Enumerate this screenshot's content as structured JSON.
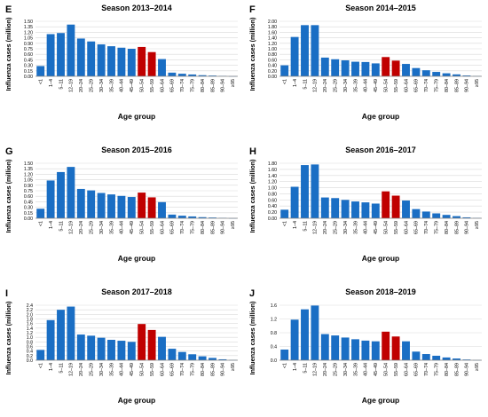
{
  "figure": {
    "layout": "3 rows x 2 columns",
    "common_ylabel": "Influenza cases (million)",
    "common_xlabel": "Age group"
  },
  "colors": {
    "bar": "#1a6ec4",
    "highlight": "#c00000",
    "grid": "#d9d9d9",
    "axis": "#7f7f7f"
  },
  "chart_data": [
    {
      "type": "bar",
      "panel_letter": "E",
      "title": "Season 2013–2014",
      "xlabel": "Age group",
      "ylabel": "Influenza cases (million)",
      "categories": [
        "<1",
        "1–4",
        "5–11",
        "12–19",
        "20–24",
        "25–29",
        "30–34",
        "35–39",
        "40–44",
        "45–49",
        "50–54",
        "55–59",
        "60–64",
        "65–69",
        "70–74",
        "75–79",
        "80–84",
        "85–89",
        "90–94",
        "≥95"
      ],
      "values": [
        0.28,
        1.15,
        1.18,
        1.41,
        1.03,
        0.95,
        0.87,
        0.82,
        0.78,
        0.75,
        0.8,
        0.66,
        0.47,
        0.1,
        0.07,
        0.05,
        0.03,
        0.02,
        0.01,
        0.003
      ],
      "highlight_categories": [
        "50–54",
        "55–59"
      ],
      "yticks": [
        "0.00",
        "0.15",
        "0.30",
        "0.45",
        "0.60",
        "0.75",
        "0.90",
        "1.05",
        "1.20",
        "1.35",
        "1.50"
      ],
      "ylim": [
        0,
        1.5
      ],
      "grid": true
    },
    {
      "type": "bar",
      "panel_letter": "F",
      "title": "Season 2014–2015",
      "xlabel": "Age group",
      "ylabel": "Influenza cases (million)",
      "categories": [
        "<1",
        "1–4",
        "5–11",
        "12–19",
        "20–24",
        "25–29",
        "30–34",
        "35–39",
        "40–44",
        "45–49",
        "50–54",
        "55–59",
        "60–64",
        "65–69",
        "70–74",
        "75–79",
        "80–84",
        "85–89",
        "90–94",
        "≥95"
      ],
      "values": [
        0.4,
        1.43,
        1.86,
        1.86,
        0.68,
        0.62,
        0.58,
        0.53,
        0.52,
        0.47,
        0.7,
        0.57,
        0.45,
        0.3,
        0.22,
        0.16,
        0.11,
        0.07,
        0.03,
        0.01
      ],
      "highlight_categories": [
        "50–54",
        "55–59"
      ],
      "yticks": [
        "0.00",
        "0.20",
        "0.40",
        "0.60",
        "0.80",
        "1.00",
        "1.20",
        "1.40",
        "1.60",
        "1.80",
        "2.00"
      ],
      "ylim": [
        0,
        2.0
      ],
      "grid": true
    },
    {
      "type": "bar",
      "panel_letter": "G",
      "title": "Season 2015–2016",
      "xlabel": "Age group",
      "ylabel": "Influenza cases (million)",
      "categories": [
        "<1",
        "1–4",
        "5–11",
        "12–19",
        "20–24",
        "25–29",
        "30–34",
        "35–39",
        "40–44",
        "45–49",
        "50–54",
        "55–59",
        "60–64",
        "65–69",
        "70–74",
        "75–79",
        "80–84",
        "85–89",
        "90–94",
        "≥95"
      ],
      "values": [
        0.26,
        1.03,
        1.26,
        1.4,
        0.8,
        0.76,
        0.69,
        0.65,
        0.61,
        0.58,
        0.7,
        0.57,
        0.44,
        0.1,
        0.07,
        0.05,
        0.03,
        0.02,
        0.01,
        0.003
      ],
      "highlight_categories": [
        "50–54",
        "55–59"
      ],
      "yticks": [
        "0.00",
        "0.15",
        "0.30",
        "0.45",
        "0.60",
        "0.75",
        "0.90",
        "1.05",
        "1.20",
        "1.35",
        "1.50"
      ],
      "ylim": [
        0,
        1.5
      ],
      "grid": true
    },
    {
      "type": "bar",
      "panel_letter": "H",
      "title": "Season 2016–2017",
      "xlabel": "Age group",
      "ylabel": "Influenza cases (million)",
      "categories": [
        "<1",
        "1–4",
        "5–11",
        "12–19",
        "20–24",
        "25–29",
        "30–34",
        "35–39",
        "40–44",
        "45–49",
        "50–54",
        "55–59",
        "60–64",
        "65–69",
        "70–74",
        "75–79",
        "80–84",
        "85–89",
        "90–94",
        "≥95"
      ],
      "values": [
        0.28,
        1.03,
        1.74,
        1.76,
        0.68,
        0.66,
        0.6,
        0.55,
        0.52,
        0.48,
        0.88,
        0.74,
        0.58,
        0.3,
        0.22,
        0.16,
        0.11,
        0.07,
        0.03,
        0.01
      ],
      "highlight_categories": [
        "50–54",
        "55–59"
      ],
      "yticks": [
        "0.00",
        "0.20",
        "0.40",
        "0.60",
        "0.80",
        "1.00",
        "1.20",
        "1.40",
        "1.60",
        "1.80"
      ],
      "ylim": [
        0,
        1.8
      ],
      "grid": true
    },
    {
      "type": "bar",
      "panel_letter": "I",
      "title": "Season 2017–2018",
      "xlabel": "Age group",
      "ylabel": "Influenza cases (million)",
      "categories": [
        "<1",
        "1–4",
        "5–11",
        "12–19",
        "20–24",
        "25–29",
        "30–34",
        "35–39",
        "40–44",
        "45–49",
        "50–54",
        "55–59",
        "60–64",
        "65–69",
        "70–74",
        "75–79",
        "80–84",
        "85–89",
        "90–94",
        "≥95"
      ],
      "values": [
        0.45,
        1.75,
        2.2,
        2.34,
        1.12,
        1.07,
        0.98,
        0.89,
        0.85,
        0.8,
        1.58,
        1.32,
        1.02,
        0.5,
        0.36,
        0.26,
        0.17,
        0.1,
        0.04,
        0.01
      ],
      "highlight_categories": [
        "50–54",
        "55–59"
      ],
      "yticks": [
        "0.0",
        "0.2",
        "0.4",
        "0.6",
        "0.8",
        "1.0",
        "1.2",
        "1.4",
        "1.6",
        "1.8",
        "2.0",
        "2.2",
        "2.4"
      ],
      "ylim": [
        0,
        2.4
      ],
      "grid": true
    },
    {
      "type": "bar",
      "panel_letter": "J",
      "title": "Season 2018–2019",
      "xlabel": "Age group",
      "ylabel": "Influenza cases (million)",
      "categories": [
        "<1",
        "1–4",
        "5–11",
        "12–19",
        "20–24",
        "25–29",
        "30–34",
        "35–39",
        "40–44",
        "45–49",
        "50–54",
        "55–59",
        "60–64",
        "65–69",
        "70–74",
        "75–79",
        "80–84",
        "85–89",
        "90–94",
        "≥95"
      ],
      "values": [
        0.31,
        1.18,
        1.48,
        1.59,
        0.76,
        0.72,
        0.66,
        0.61,
        0.57,
        0.55,
        0.83,
        0.69,
        0.55,
        0.25,
        0.18,
        0.13,
        0.08,
        0.05,
        0.02,
        0.005
      ],
      "highlight_categories": [
        "50–54",
        "55–59"
      ],
      "yticks": [
        "0.0",
        "0.4",
        "0.8",
        "1.2",
        "1.6"
      ],
      "ylim": [
        0,
        1.6
      ],
      "grid": true
    }
  ]
}
